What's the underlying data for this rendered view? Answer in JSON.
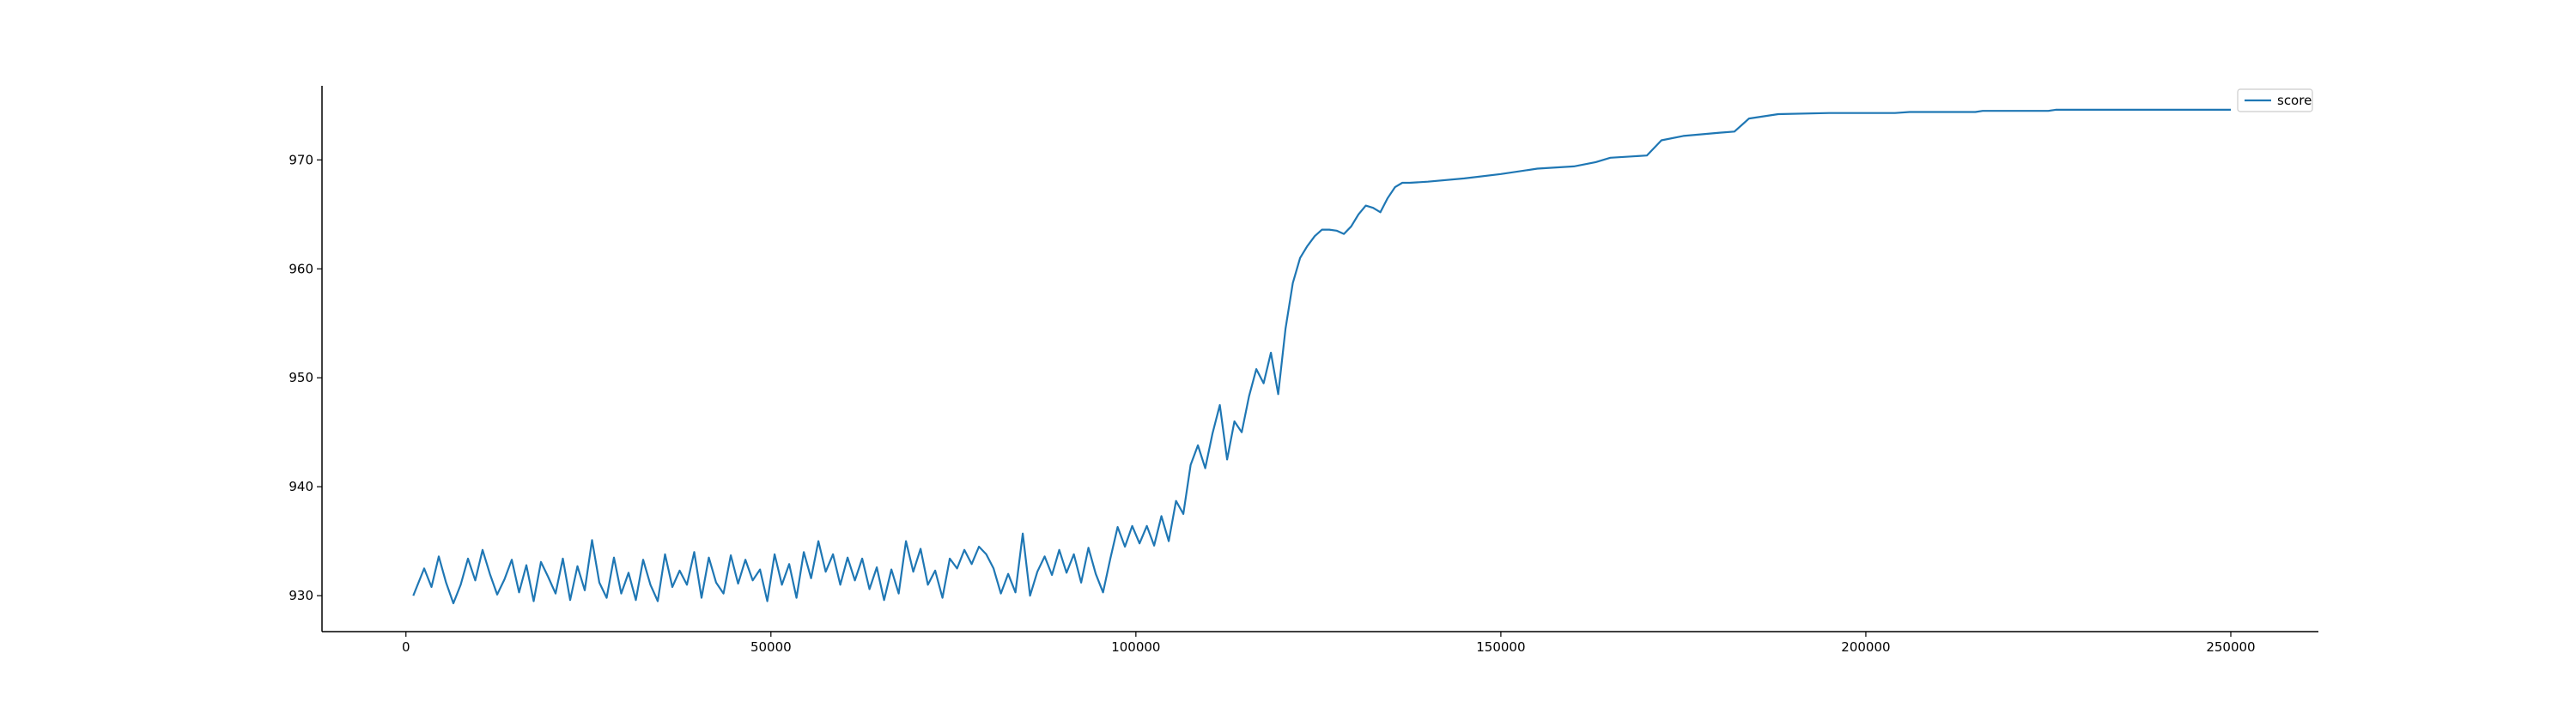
{
  "chart_data": {
    "type": "line",
    "title": "",
    "xlabel": "",
    "ylabel": "",
    "xlim": [
      -11500,
      262000
    ],
    "ylim": [
      926.7,
      976.8
    ],
    "xticks": [
      0,
      50000,
      100000,
      150000,
      200000,
      250000
    ],
    "xtick_labels": [
      "0",
      "50000",
      "100000",
      "150000",
      "200000",
      "250000"
    ],
    "yticks": [
      930,
      940,
      950,
      960,
      970
    ],
    "ytick_labels": [
      "930",
      "940",
      "950",
      "960",
      "970"
    ],
    "grid": false,
    "legend_position": "top-right",
    "series": [
      {
        "name": "score",
        "color": "#1f77b4",
        "x": [
          1000,
          2500,
          3500,
          4500,
          5500,
          6500,
          7500,
          8500,
          9500,
          10500,
          11500,
          12500,
          13500,
          14500,
          15500,
          16500,
          17500,
          18500,
          19500,
          20500,
          21500,
          22500,
          23500,
          24500,
          25500,
          26500,
          27500,
          28500,
          29500,
          30500,
          31500,
          32500,
          33500,
          34500,
          35500,
          36500,
          37500,
          38500,
          39500,
          40500,
          41500,
          42500,
          43500,
          44500,
          45500,
          46500,
          47500,
          48500,
          49500,
          50500,
          51500,
          52500,
          53500,
          54500,
          55500,
          56500,
          57500,
          58500,
          59500,
          60500,
          61500,
          62500,
          63500,
          64500,
          65500,
          66500,
          67500,
          68500,
          69500,
          70500,
          71500,
          72500,
          73500,
          74500,
          75500,
          76500,
          77500,
          78500,
          79500,
          80500,
          81500,
          82500,
          83500,
          84500,
          85500,
          86500,
          87500,
          88500,
          89500,
          90500,
          91500,
          92500,
          93500,
          94500,
          95500,
          96500,
          97500,
          98500,
          99500,
          100500,
          101500,
          102500,
          103500,
          104500,
          105500,
          106500,
          107500,
          108500,
          109500,
          110500,
          111500,
          112500,
          113500,
          114500,
          115500,
          116500,
          117500,
          118500,
          119500,
          120500,
          121500,
          122500,
          123500,
          124500,
          125500,
          126500,
          127500,
          128500,
          129500,
          130500,
          131500,
          132500,
          133500,
          134500,
          135500,
          136500,
          137500,
          140000,
          145000,
          150000,
          155000,
          160000,
          163000,
          165000,
          170000,
          172000,
          175000,
          180000,
          182000,
          184000,
          188000,
          195000,
          204000,
          206000,
          215000,
          216000,
          225000,
          226000,
          240000,
          250000
        ],
        "values": [
          930.0,
          932.5,
          930.8,
          933.6,
          931.2,
          929.3,
          931.0,
          933.4,
          931.4,
          934.2,
          932.0,
          930.1,
          931.5,
          933.3,
          930.3,
          932.8,
          929.5,
          933.1,
          931.7,
          930.2,
          933.4,
          929.6,
          932.7,
          930.5,
          935.1,
          931.2,
          929.8,
          933.5,
          930.2,
          932.1,
          929.6,
          933.3,
          931.0,
          929.5,
          933.8,
          930.8,
          932.3,
          931.0,
          934.0,
          929.8,
          933.5,
          931.2,
          930.2,
          933.7,
          931.1,
          933.3,
          931.4,
          932.4,
          929.5,
          933.8,
          931.0,
          932.9,
          929.8,
          934.0,
          931.6,
          935.0,
          932.2,
          933.8,
          931.0,
          933.5,
          931.4,
          933.4,
          930.6,
          932.6,
          929.6,
          932.4,
          930.2,
          935.0,
          932.2,
          934.3,
          931.0,
          932.3,
          929.8,
          933.4,
          932.5,
          934.2,
          932.9,
          934.5,
          933.8,
          932.5,
          930.2,
          932.0,
          930.3,
          935.7,
          930.0,
          932.2,
          933.6,
          931.9,
          934.2,
          932.1,
          933.8,
          931.2,
          934.4,
          932.0,
          930.3,
          933.4,
          936.3,
          934.5,
          936.4,
          934.8,
          936.4,
          934.6,
          937.3,
          935.0,
          938.7,
          937.5,
          942.0,
          943.8,
          941.7,
          944.9,
          947.5,
          942.5,
          946.0,
          945.0,
          948.3,
          950.8,
          949.5,
          952.3,
          948.5,
          954.5,
          958.7,
          961.0,
          962.1,
          963.0,
          963.6,
          963.6,
          963.5,
          963.2,
          963.9,
          965.0,
          965.8,
          965.6,
          965.2,
          966.5,
          967.5,
          967.9,
          967.9,
          968.0,
          968.3,
          968.7,
          969.2,
          969.4,
          969.8,
          970.2,
          970.4,
          971.8,
          972.2,
          972.5,
          972.6,
          973.8,
          974.2,
          974.3,
          974.3,
          974.4,
          974.4,
          974.5,
          974.5,
          974.6,
          974.6,
          974.6
        ]
      }
    ]
  }
}
